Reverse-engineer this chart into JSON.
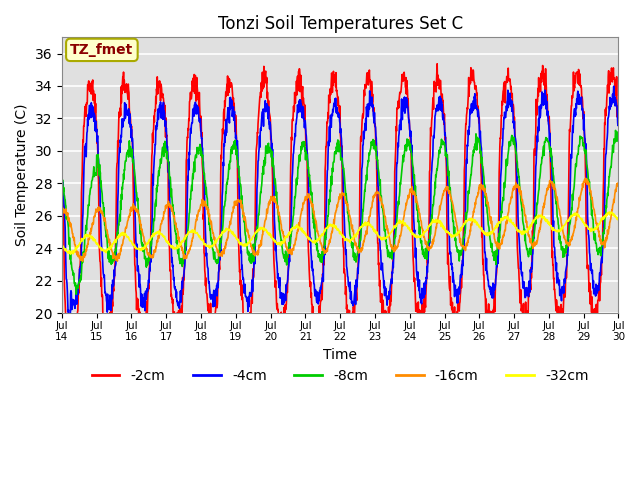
{
  "title": "Tonzi Soil Temperatures Set C",
  "xlabel": "Time",
  "ylabel": "Soil Temperature (C)",
  "annotation": "TZ_fmet",
  "annotation_color": "#8B0000",
  "annotation_bg": "#FFFFCC",
  "annotation_border": "#AAAA00",
  "series_labels": [
    "-2cm",
    "-4cm",
    "-8cm",
    "-16cm",
    "-32cm"
  ],
  "series_colors": [
    "#FF0000",
    "#0000FF",
    "#00CC00",
    "#FF8C00",
    "#FFFF00"
  ],
  "ylim": [
    20,
    37
  ],
  "yticks": [
    20,
    22,
    24,
    26,
    28,
    30,
    32,
    34,
    36
  ],
  "bg_color": "#E0E0E0",
  "grid_color": "#FFFFFF",
  "linewidth": 1.2,
  "n_days": 16,
  "pts_per_day": 96
}
